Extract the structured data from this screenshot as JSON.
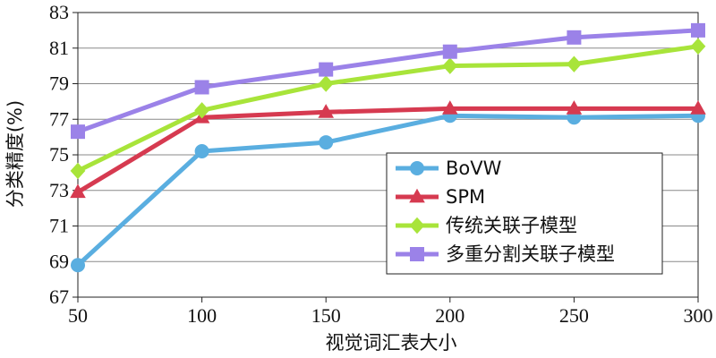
{
  "chart_data": {
    "type": "line",
    "title": "",
    "xlabel": "视觉词汇表大小",
    "ylabel": "分类精度(%)",
    "x": [
      50,
      100,
      150,
      200,
      250,
      300
    ],
    "xlim": [
      50,
      300
    ],
    "ylim": [
      67,
      83
    ],
    "x_ticks": [
      50,
      100,
      150,
      200,
      250,
      300
    ],
    "y_ticks": [
      67,
      69,
      71,
      73,
      75,
      77,
      79,
      81,
      83
    ],
    "grid": "horizontal",
    "legend_position": "lower-right",
    "series": [
      {
        "name": "BoVW",
        "color": "#5aaee0",
        "marker": "circle",
        "values": [
          68.8,
          75.2,
          75.7,
          77.2,
          77.1,
          77.2
        ]
      },
      {
        "name": "SPM",
        "color": "#d63a50",
        "marker": "triangle",
        "values": [
          72.9,
          77.1,
          77.4,
          77.6,
          77.6,
          77.6
        ]
      },
      {
        "name": "传统关联子模型",
        "color": "#a8e43a",
        "marker": "diamond",
        "values": [
          74.1,
          77.5,
          79.0,
          80.0,
          80.1,
          81.1
        ]
      },
      {
        "name": "多重分割关联子模型",
        "color": "#9b82e8",
        "marker": "square",
        "values": [
          76.3,
          78.8,
          79.8,
          80.8,
          81.6,
          82.0
        ]
      }
    ]
  }
}
